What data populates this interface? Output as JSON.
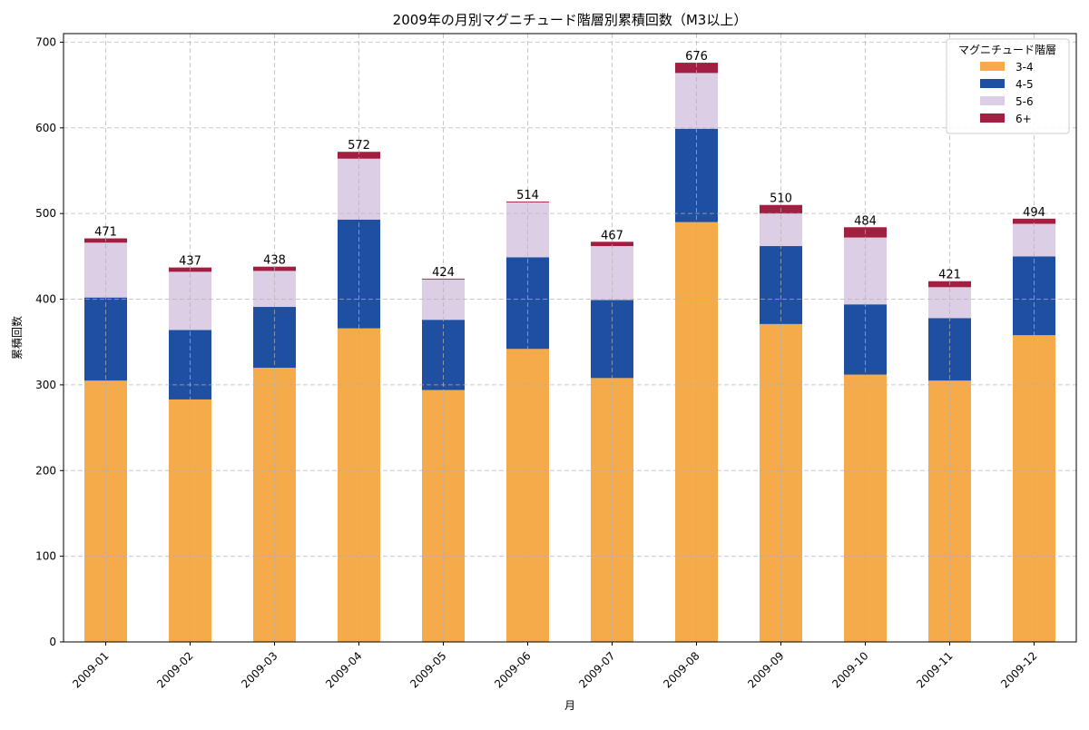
{
  "chart_data": {
    "type": "bar",
    "stacked": true,
    "title": "2009年の月別マグニチュード階層別累積回数（M3以上）",
    "xlabel": "月",
    "ylabel": "累積回数",
    "ylim": [
      0,
      710
    ],
    "yticks": [
      0,
      100,
      200,
      300,
      400,
      500,
      600,
      700
    ],
    "grid": true,
    "legend": {
      "title": "マグニチュード階層",
      "placement": "top-right"
    },
    "categories": [
      "2009-01",
      "2009-02",
      "2009-03",
      "2009-04",
      "2009-05",
      "2009-06",
      "2009-07",
      "2009-08",
      "2009-09",
      "2009-10",
      "2009-11",
      "2009-12"
    ],
    "series": [
      {
        "name": "3-4",
        "color": "#f5ab4a",
        "values": [
          305,
          283,
          320,
          366,
          294,
          342,
          308,
          490,
          371,
          312,
          305,
          358
        ]
      },
      {
        "name": "4-5",
        "color": "#1f4fa0",
        "values": [
          97,
          81,
          71,
          127,
          82,
          107,
          91,
          109,
          91,
          82,
          73,
          92
        ]
      },
      {
        "name": "5-6",
        "color": "#dccfe5",
        "values": [
          64,
          68,
          42,
          71,
          47,
          64,
          63,
          65,
          38,
          78,
          36,
          38
        ]
      },
      {
        "name": "6+",
        "color": "#a31f42",
        "values": [
          5,
          5,
          5,
          8,
          1,
          1,
          5,
          12,
          10,
          12,
          7,
          6
        ]
      }
    ],
    "totals": [
      "471",
      "437",
      "438",
      "572",
      "424",
      "514",
      "467",
      "676",
      "510",
      "484",
      "421",
      "494"
    ]
  }
}
